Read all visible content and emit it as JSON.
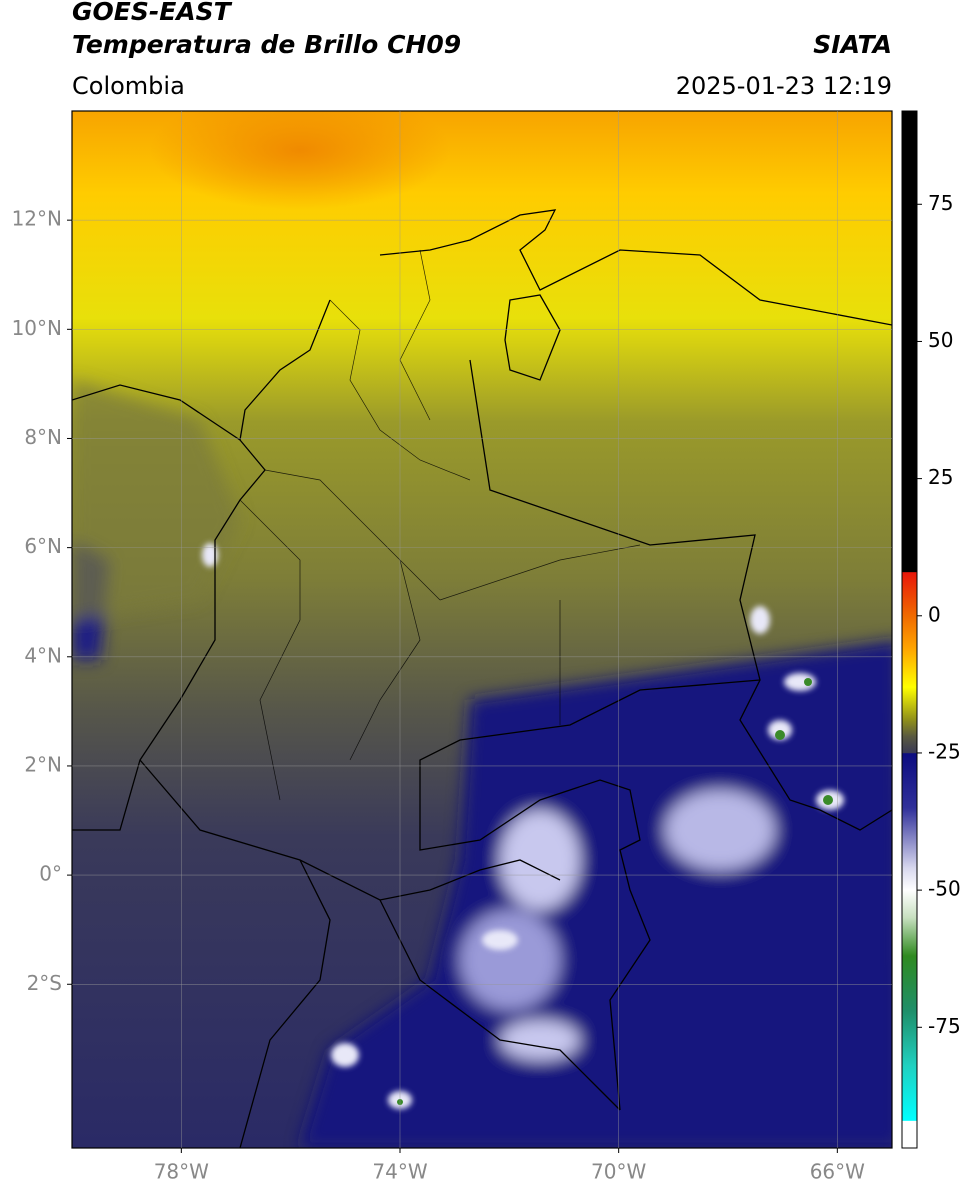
{
  "header": {
    "title": "GOES-EAST",
    "subtitle": "Temperatura de Brillo CH09",
    "source": "SIATA",
    "region": "Colombia",
    "timestamp": "2025-01-23 12:19"
  },
  "map": {
    "lonlim": [
      -80,
      -65
    ],
    "latlim": [
      -5,
      14
    ],
    "lon_ticks": [
      {
        "value": -78,
        "label": "78°W"
      },
      {
        "value": -74,
        "label": "74°W"
      },
      {
        "value": -70,
        "label": "70°W"
      },
      {
        "value": -66,
        "label": "66°W"
      }
    ],
    "lat_ticks": [
      {
        "value": 12,
        "label": "12°N"
      },
      {
        "value": 10,
        "label": "10°N"
      },
      {
        "value": 8,
        "label": "8°N"
      },
      {
        "value": 6,
        "label": "6°N"
      },
      {
        "value": 4,
        "label": "4°N"
      },
      {
        "value": 2,
        "label": "2°N"
      },
      {
        "value": 0,
        "label": "0°"
      },
      {
        "value": -2,
        "label": "2°S"
      }
    ],
    "grid": true
  },
  "colorbar": {
    "lim": [
      -97,
      92
    ],
    "ticks": [
      75,
      50,
      25,
      0,
      -25,
      -50,
      -75
    ],
    "stops": [
      [
        92,
        "#000000"
      ],
      [
        8,
        "#000000"
      ],
      [
        7.9,
        "#e8170a"
      ],
      [
        0,
        "#f06a00"
      ],
      [
        -6,
        "#ffa500"
      ],
      [
        -13,
        "#ffff00"
      ],
      [
        -19,
        "#8f8f1a"
      ],
      [
        -22,
        "#5a5a40"
      ],
      [
        -25,
        "#3a3a55"
      ],
      [
        -25.1,
        "#0c0c80"
      ],
      [
        -35,
        "#30309a"
      ],
      [
        -46,
        "#d8d8ee"
      ],
      [
        -50,
        "#ffffff"
      ],
      [
        -55,
        "#c8e0c0"
      ],
      [
        -62,
        "#2f8a20"
      ],
      [
        -72,
        "#1f8f6a"
      ],
      [
        -82,
        "#20d0c0"
      ],
      [
        -92,
        "#00ffff"
      ],
      [
        -92.1,
        "#ffffff"
      ],
      [
        -97,
        "#ffffff"
      ]
    ]
  }
}
